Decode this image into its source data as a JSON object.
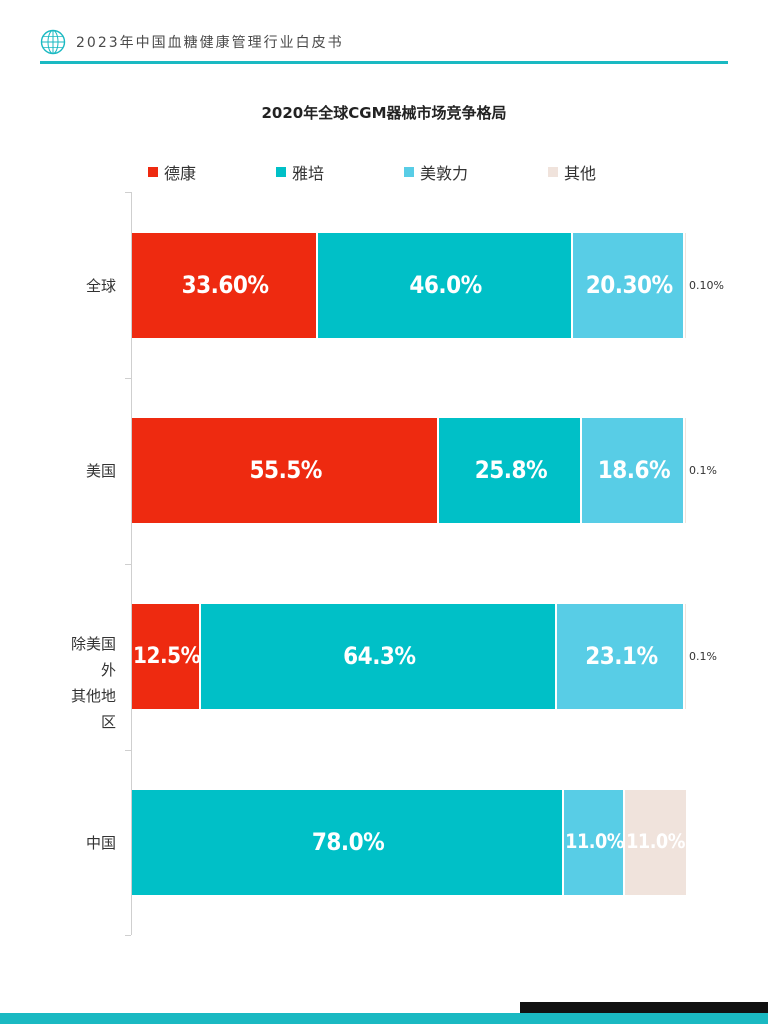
{
  "header": {
    "title": "2023年中国血糖健康管理行业白皮书",
    "logo_icon": "globe-icon",
    "accent_color": "#1ab9c2"
  },
  "chart_data": {
    "type": "bar",
    "orientation": "horizontal",
    "stacked": true,
    "title": "2020年全球CGM器械市场竞争格局",
    "legend_position": "top",
    "grid": false,
    "categories": [
      "全球",
      "美国",
      "除美国外\n其他地区",
      "中国"
    ],
    "series": [
      {
        "name": "德康",
        "color": "#ee2a10",
        "values": [
          33.6,
          55.5,
          12.5,
          0
        ],
        "labels": [
          "33.60%",
          "55.5%",
          "12.5%",
          ""
        ]
      },
      {
        "name": "雅培",
        "color": "#00c0c7",
        "values": [
          46.0,
          25.8,
          64.3,
          78.0
        ],
        "labels": [
          "46.0%",
          "25.8%",
          "64.3%",
          "78.0%"
        ]
      },
      {
        "name": "美敦力",
        "color": "#58cde6",
        "values": [
          20.3,
          18.6,
          23.1,
          11.0
        ],
        "labels": [
          "20.30%",
          "18.6%",
          "23.1%",
          "11.0%"
        ]
      },
      {
        "name": "其他",
        "color": "#f0e3dc",
        "values": [
          0.1,
          0.1,
          0.1,
          11.0
        ],
        "labels": [
          "0.10%",
          "0.1%",
          "0.1%",
          "11.0%"
        ]
      }
    ]
  }
}
